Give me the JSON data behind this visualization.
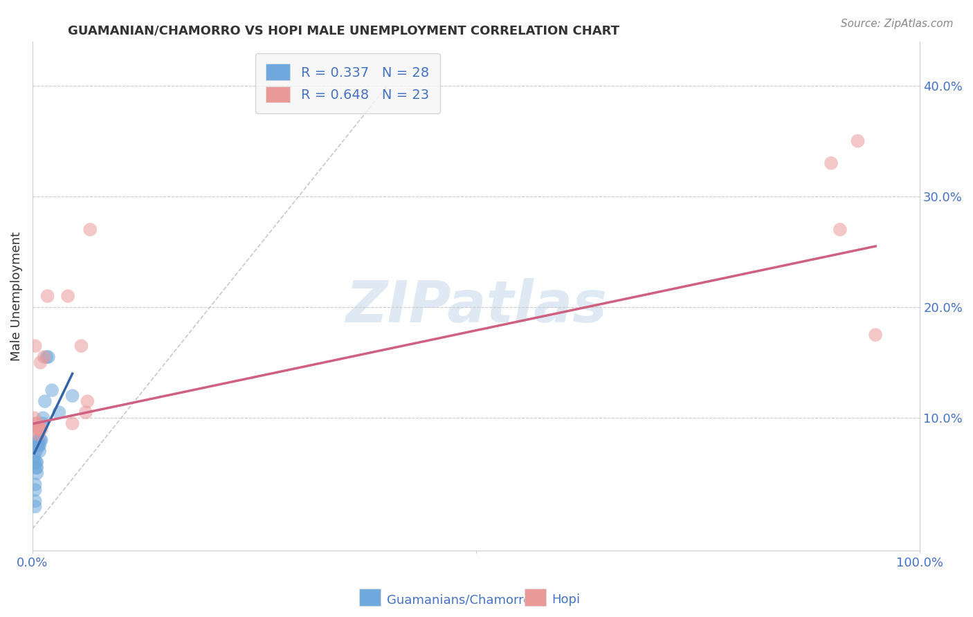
{
  "title": "GUAMANIAN/CHAMORRO VS HOPI MALE UNEMPLOYMENT CORRELATION CHART",
  "source": "Source: ZipAtlas.com",
  "ylabel": "Male Unemployment",
  "watermark": "ZIPatlas",
  "legend_blue_r": "R = 0.337",
  "legend_blue_n": "N = 28",
  "legend_pink_r": "R = 0.648",
  "legend_pink_n": "N = 23",
  "blue_color": "#6fa8dc",
  "pink_color": "#ea9999",
  "blue_line_color": "#3465a8",
  "pink_line_color": "#d06080",
  "diagonal_color": "#bbbbbb",
  "background_color": "#ffffff",
  "blue_scatter_x": [
    0.002,
    0.002,
    0.003,
    0.003,
    0.003,
    0.003,
    0.004,
    0.004,
    0.004,
    0.005,
    0.005,
    0.005,
    0.006,
    0.006,
    0.007,
    0.007,
    0.008,
    0.008,
    0.009,
    0.01,
    0.011,
    0.012,
    0.014,
    0.016,
    0.018,
    0.022,
    0.03,
    0.045
  ],
  "blue_scatter_y": [
    0.065,
    0.06,
    0.04,
    0.035,
    0.025,
    0.02,
    0.07,
    0.06,
    0.055,
    0.06,
    0.055,
    0.05,
    0.08,
    0.075,
    0.08,
    0.075,
    0.075,
    0.07,
    0.08,
    0.08,
    0.095,
    0.1,
    0.115,
    0.155,
    0.155,
    0.125,
    0.105,
    0.12
  ],
  "pink_scatter_x": [
    0.002,
    0.003,
    0.004,
    0.005,
    0.006,
    0.007,
    0.007,
    0.008,
    0.008,
    0.009,
    0.01,
    0.013,
    0.017,
    0.04,
    0.045,
    0.055,
    0.06,
    0.062,
    0.065,
    0.9,
    0.91,
    0.93,
    0.95
  ],
  "pink_scatter_y": [
    0.1,
    0.165,
    0.095,
    0.09,
    0.095,
    0.085,
    0.09,
    0.09,
    0.09,
    0.15,
    0.09,
    0.155,
    0.21,
    0.21,
    0.095,
    0.165,
    0.105,
    0.115,
    0.27,
    0.33,
    0.27,
    0.35,
    0.175
  ],
  "blue_line_x": [
    0.002,
    0.045
  ],
  "blue_line_y": [
    0.068,
    0.14
  ],
  "pink_line_x": [
    0.002,
    0.95
  ],
  "pink_line_y": [
    0.095,
    0.255
  ],
  "diag_line_x": [
    0.0,
    0.4
  ],
  "diag_line_y": [
    0.0,
    0.4
  ],
  "xlim": [
    0.0,
    1.0
  ],
  "ylim": [
    -0.02,
    0.44
  ],
  "y_ticks": [
    0.1,
    0.2,
    0.3,
    0.4
  ],
  "y_tick_labels": [
    "10.0%",
    "20.0%",
    "30.0%",
    "40.0%"
  ],
  "x_tick_left_label": "0.0%",
  "x_tick_right_label": "100.0%",
  "tick_color": "#4472c4",
  "grid_color": "#cccccc",
  "title_color": "#333333",
  "source_color": "#888888"
}
